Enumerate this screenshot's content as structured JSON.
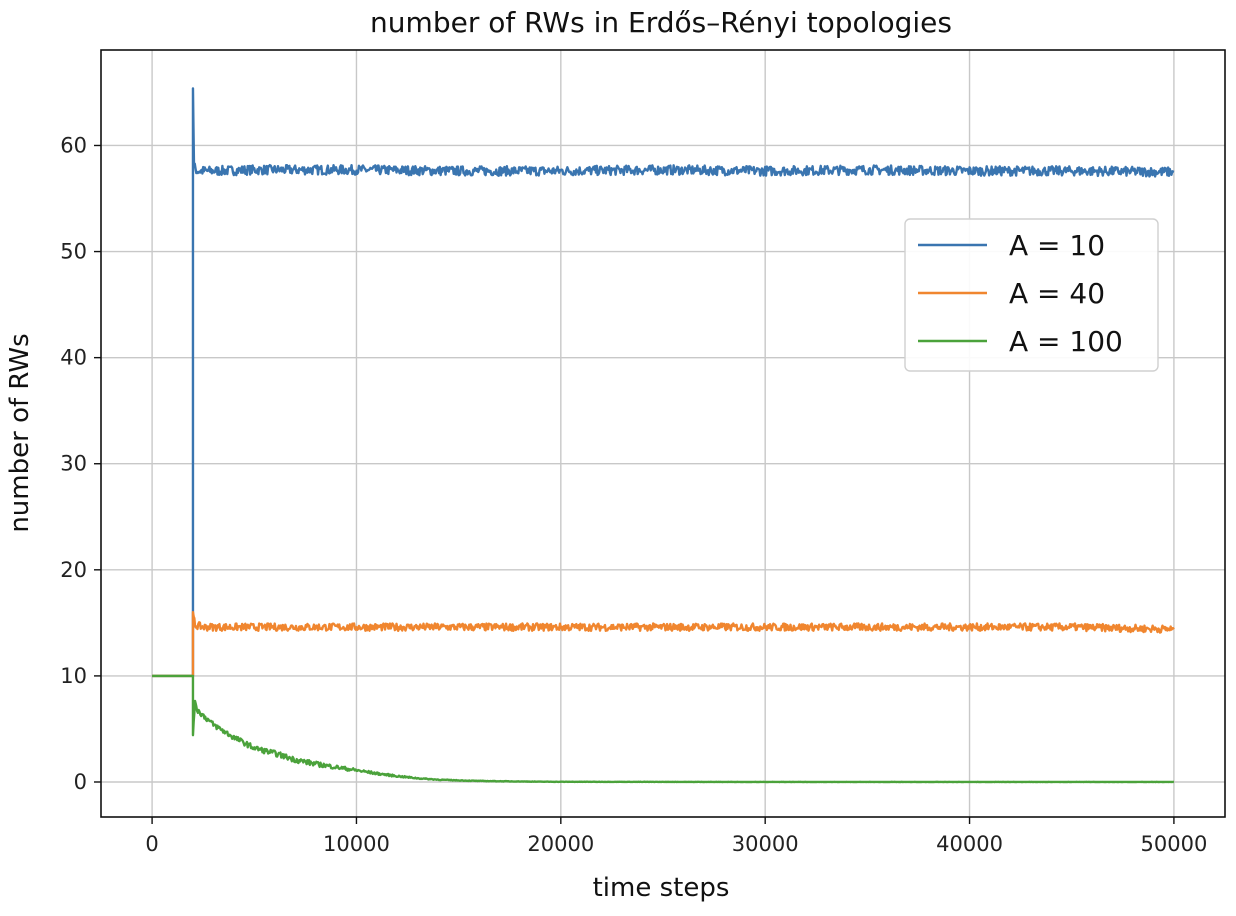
{
  "chart_data": {
    "type": "line",
    "title": "number of RWs in Erdős–Rényi topologies",
    "xlabel": "time steps",
    "ylabel": "number of RWs",
    "xlim": [
      -2500,
      52500
    ],
    "ylim": [
      -3.3,
      69
    ],
    "xticks": [
      0,
      10000,
      20000,
      30000,
      40000,
      50000
    ],
    "yticks": [
      0,
      10,
      20,
      30,
      40,
      50,
      60
    ],
    "grid": true,
    "legend_position": "upper right",
    "series": [
      {
        "name": "A = 10",
        "color": "#3a75b0",
        "x": [
          0,
          2000,
          2000,
          2050,
          2200,
          2500,
          3000,
          5000,
          10000,
          15000,
          20000,
          25000,
          30000,
          35000,
          40000,
          45000,
          50000
        ],
        "y": [
          10,
          10,
          65.5,
          58,
          57.6,
          57.6,
          57.6,
          57.7,
          57.7,
          57.6,
          57.6,
          57.7,
          57.6,
          57.7,
          57.6,
          57.6,
          57.5
        ]
      },
      {
        "name": "A = 40",
        "color": "#f0862f",
        "x": [
          0,
          2000,
          2000,
          2100,
          2500,
          5000,
          10000,
          15000,
          20000,
          25000,
          30000,
          35000,
          40000,
          45000,
          50000
        ],
        "y": [
          10,
          10,
          15.8,
          14.8,
          14.6,
          14.6,
          14.6,
          14.6,
          14.6,
          14.6,
          14.6,
          14.6,
          14.6,
          14.6,
          14.4
        ]
      },
      {
        "name": "A = 100",
        "color": "#4ba23b",
        "x": [
          0,
          2000,
          2000,
          2100,
          2200,
          3000,
          4000,
          5000,
          6000,
          7000,
          8000,
          9000,
          10000,
          11000,
          12000,
          13000,
          14000,
          15000,
          16000,
          17000,
          18000,
          19000,
          20000,
          25000,
          30000,
          35000,
          40000,
          45000,
          50000
        ],
        "y": [
          10,
          10,
          4.2,
          7.8,
          6.8,
          5.4,
          4.2,
          3.2,
          2.7,
          2.1,
          1.7,
          1.4,
          1.1,
          0.8,
          0.55,
          0.35,
          0.22,
          0.15,
          0.1,
          0.07,
          0.05,
          0.03,
          0.02,
          0.01,
          0.0,
          0.0,
          0.0,
          0.0,
          0.0
        ]
      }
    ]
  }
}
